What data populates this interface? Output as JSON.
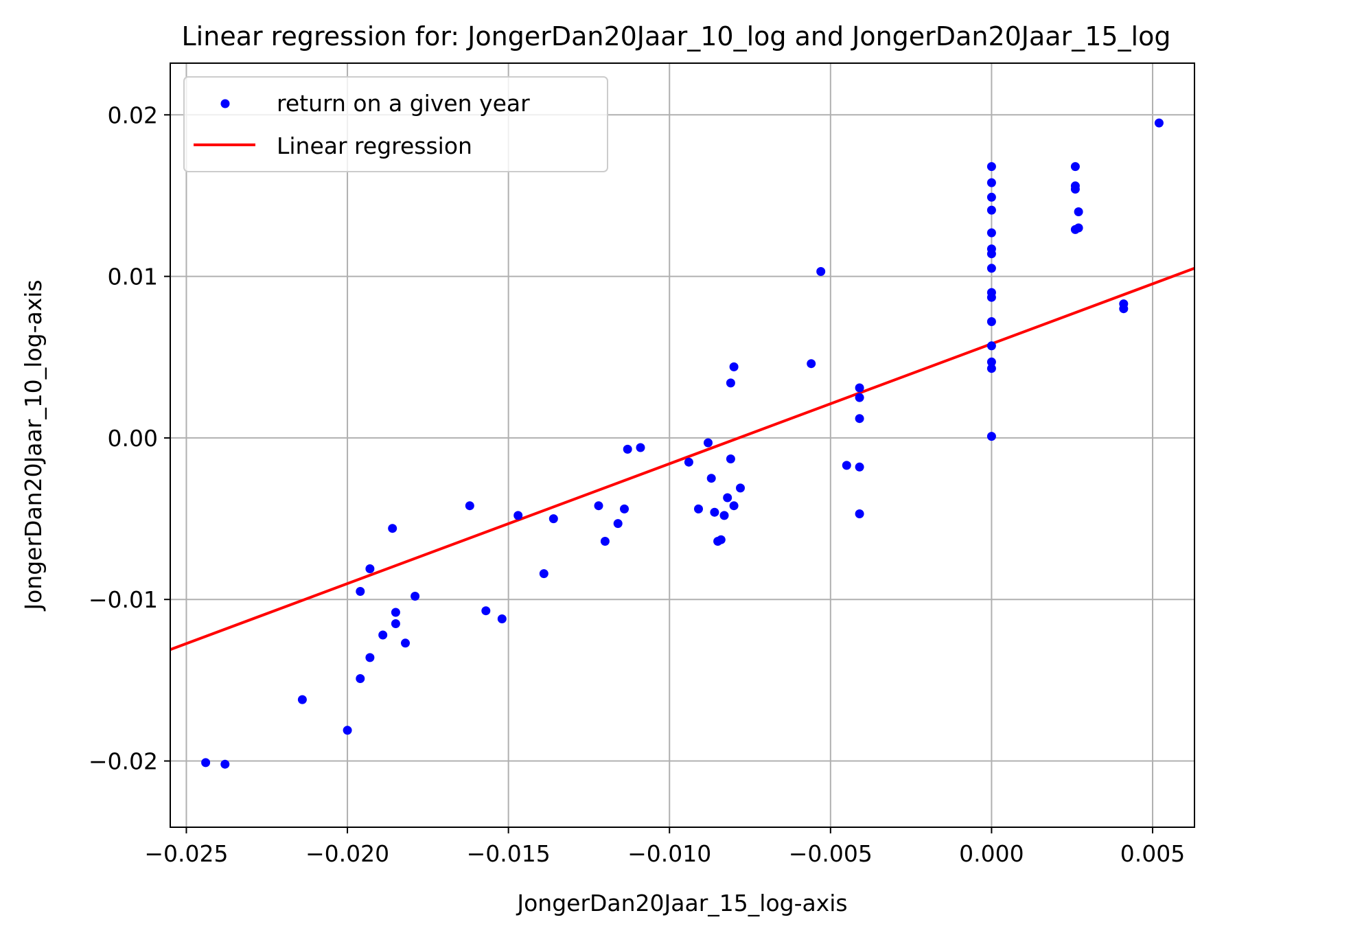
{
  "chart_data": {
    "type": "scatter",
    "title": "Linear regression for: JongerDan20Jaar_10_log and JongerDan20Jaar_15_log",
    "xlabel": "JongerDan20Jaar_15_log-axis",
    "ylabel": "JongerDan20Jaar_10_log-axis",
    "xlim": [
      -0.0255,
      0.0063
    ],
    "ylim": [
      -0.0241,
      0.0232
    ],
    "xticks": [
      -0.025,
      -0.02,
      -0.015,
      -0.01,
      -0.005,
      0.0,
      0.005
    ],
    "xtick_labels": [
      "−0.025",
      "−0.020",
      "−0.015",
      "−0.010",
      "−0.005",
      "0.000",
      "0.005"
    ],
    "yticks": [
      -0.02,
      -0.01,
      0.0,
      0.01,
      0.02
    ],
    "ytick_labels": [
      "−0.02",
      "−0.01",
      "0.00",
      "0.01",
      "0.02"
    ],
    "grid": true,
    "legend_position": "top-left",
    "legend": [
      "return on a given year",
      "Linear regression"
    ],
    "series": [
      {
        "name": "return on a given year",
        "kind": "scatter",
        "color": "#0000ff",
        "points": [
          [
            -0.0244,
            -0.0201
          ],
          [
            -0.0238,
            -0.0202
          ],
          [
            -0.0214,
            -0.0162
          ],
          [
            -0.02,
            -0.0181
          ],
          [
            -0.0196,
            -0.0095
          ],
          [
            -0.0196,
            -0.0149
          ],
          [
            -0.0193,
            -0.0081
          ],
          [
            -0.0193,
            -0.0136
          ],
          [
            -0.0189,
            -0.0122
          ],
          [
            -0.0186,
            -0.0056
          ],
          [
            -0.0185,
            -0.0108
          ],
          [
            -0.0185,
            -0.0115
          ],
          [
            -0.0182,
            -0.0127
          ],
          [
            -0.0179,
            -0.0098
          ],
          [
            -0.0162,
            -0.0042
          ],
          [
            -0.0157,
            -0.0107
          ],
          [
            -0.0152,
            -0.0112
          ],
          [
            -0.0147,
            -0.0048
          ],
          [
            -0.0139,
            -0.0084
          ],
          [
            -0.0136,
            -0.005
          ],
          [
            -0.0122,
            -0.0042
          ],
          [
            -0.012,
            -0.0064
          ],
          [
            -0.0116,
            -0.0053
          ],
          [
            -0.0114,
            -0.0044
          ],
          [
            -0.0113,
            -0.0007
          ],
          [
            -0.0109,
            -0.0006
          ],
          [
            -0.0094,
            -0.0015
          ],
          [
            -0.0091,
            -0.0044
          ],
          [
            -0.0088,
            -0.0003
          ],
          [
            -0.0087,
            -0.0025
          ],
          [
            -0.0086,
            -0.0046
          ],
          [
            -0.0085,
            -0.0064
          ],
          [
            -0.0084,
            -0.0063
          ],
          [
            -0.0083,
            -0.0048
          ],
          [
            -0.0082,
            -0.0037
          ],
          [
            -0.0081,
            0.0034
          ],
          [
            -0.0081,
            -0.0013
          ],
          [
            -0.008,
            0.0044
          ],
          [
            -0.008,
            -0.0042
          ],
          [
            -0.0078,
            -0.0031
          ],
          [
            -0.0056,
            0.0046
          ],
          [
            -0.0053,
            0.0103
          ],
          [
            -0.0045,
            -0.0017
          ],
          [
            -0.0041,
            -0.0018
          ],
          [
            -0.0041,
            -0.0047
          ],
          [
            -0.0041,
            0.0031
          ],
          [
            -0.0041,
            0.0025
          ],
          [
            -0.0041,
            0.0012
          ],
          [
            0.0,
            0.0168
          ],
          [
            0.0,
            0.0158
          ],
          [
            0.0,
            0.0149
          ],
          [
            0.0,
            0.0141
          ],
          [
            0.0,
            0.0127
          ],
          [
            0.0,
            0.0117
          ],
          [
            0.0,
            0.0114
          ],
          [
            0.0,
            0.0105
          ],
          [
            0.0,
            0.009
          ],
          [
            0.0,
            0.0087
          ],
          [
            0.0,
            0.0072
          ],
          [
            0.0,
            0.0057
          ],
          [
            0.0,
            0.0047
          ],
          [
            0.0,
            0.0043
          ],
          [
            0.0,
            0.0001
          ],
          [
            0.0026,
            0.0168
          ],
          [
            0.0026,
            0.0156
          ],
          [
            0.0026,
            0.0154
          ],
          [
            0.0027,
            0.014
          ],
          [
            0.0026,
            0.0129
          ],
          [
            0.0027,
            0.013
          ],
          [
            0.0041,
            0.0083
          ],
          [
            0.0041,
            0.008
          ],
          [
            0.0052,
            0.0195
          ]
        ]
      },
      {
        "name": "Linear regression",
        "kind": "line",
        "color": "#ff0000",
        "points": [
          [
            -0.0255,
            -0.0131
          ],
          [
            0.0063,
            0.0105
          ]
        ]
      }
    ]
  }
}
